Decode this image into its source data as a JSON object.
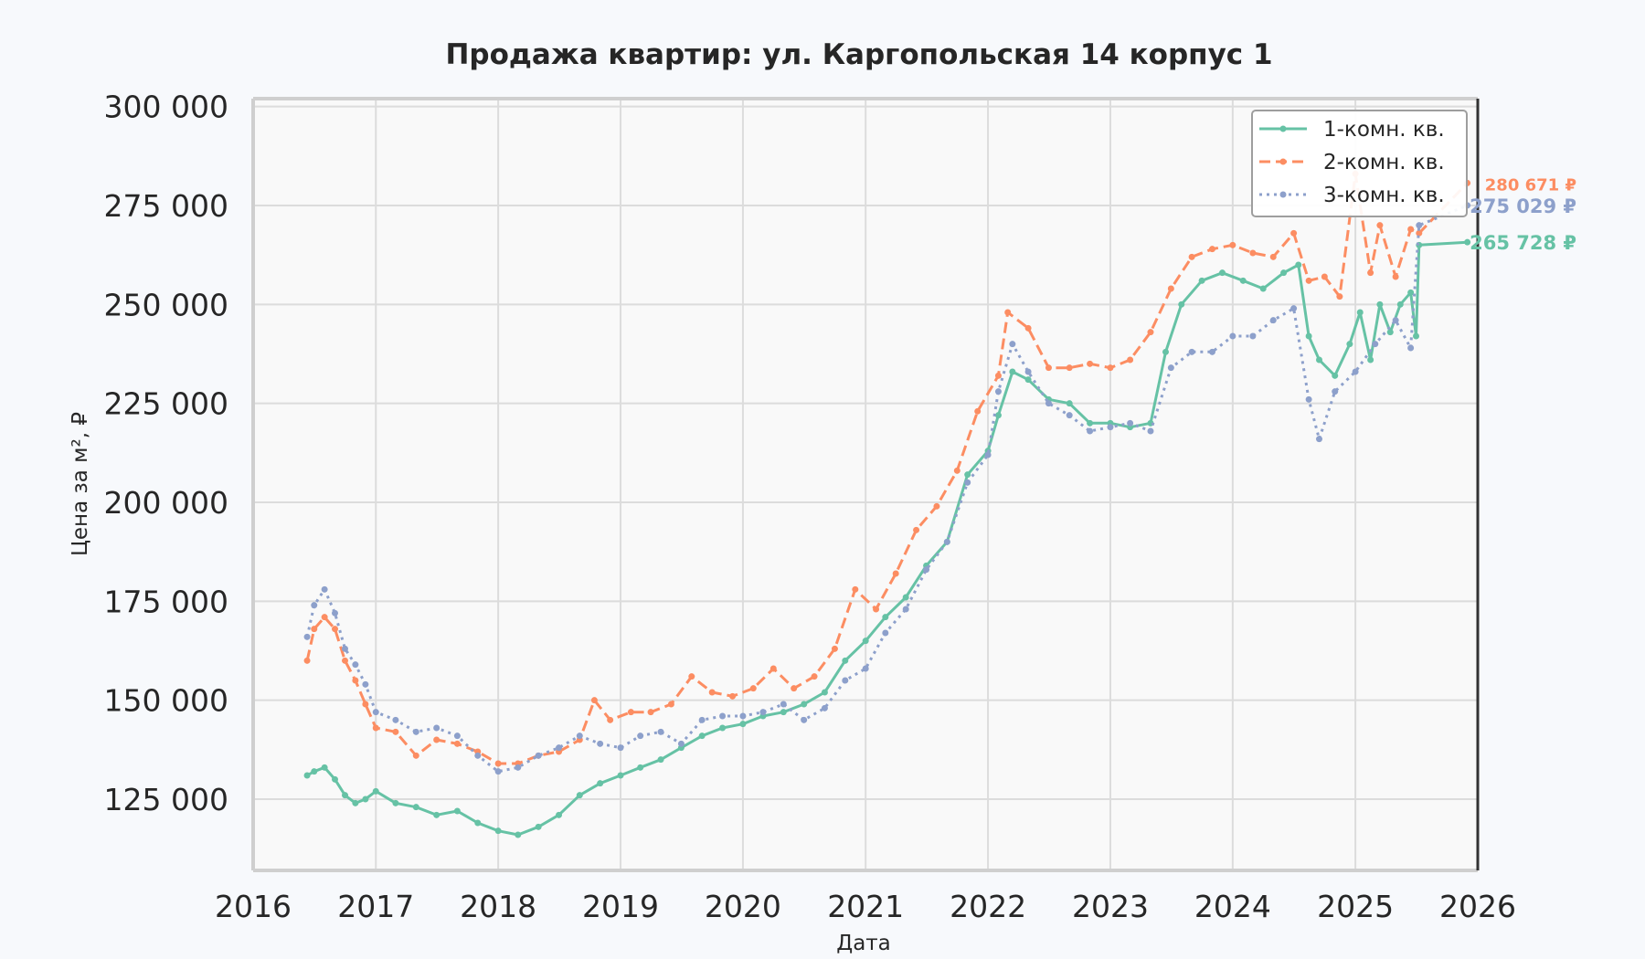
{
  "chart_data": {
    "type": "line",
    "title": "Продажа квартир: ул. Каргопольская 14 корпус 1",
    "xlabel": "Дата",
    "ylabel": "Цена за м², ₽",
    "xlim": [
      "2016-01-01",
      "2026-01-01"
    ],
    "ylim": [
      107000,
      302000
    ],
    "x_ticks": [
      "2016",
      "2017",
      "2018",
      "2019",
      "2020",
      "2021",
      "2022",
      "2023",
      "2024",
      "2025",
      "2026"
    ],
    "y_ticks": [
      "125 000",
      "150 000",
      "175 000",
      "200 000",
      "225 000",
      "250 000",
      "275 000",
      "300 000"
    ],
    "y_tick_values": [
      125000,
      150000,
      175000,
      200000,
      225000,
      250000,
      275000,
      300000
    ],
    "grid": true,
    "legend_position": "top-right",
    "series": [
      {
        "name": "1-комн. кв.",
        "color": "#66c2a5",
        "style": "solid",
        "end_label": "265 728 ₽",
        "end_value": 265728,
        "points": [
          [
            "2016-06-10",
            131000
          ],
          [
            "2016-07-01",
            132000
          ],
          [
            "2016-08-01",
            133000
          ],
          [
            "2016-09-01",
            130000
          ],
          [
            "2016-10-01",
            126000
          ],
          [
            "2016-11-01",
            124000
          ],
          [
            "2016-12-01",
            125000
          ],
          [
            "2017-01-01",
            127000
          ],
          [
            "2017-03-01",
            124000
          ],
          [
            "2017-05-01",
            123000
          ],
          [
            "2017-07-01",
            121000
          ],
          [
            "2017-09-01",
            122000
          ],
          [
            "2017-11-01",
            119000
          ],
          [
            "2018-01-01",
            117000
          ],
          [
            "2018-03-01",
            116000
          ],
          [
            "2018-05-01",
            118000
          ],
          [
            "2018-07-01",
            121000
          ],
          [
            "2018-09-01",
            126000
          ],
          [
            "2018-11-01",
            129000
          ],
          [
            "2019-01-01",
            131000
          ],
          [
            "2019-03-01",
            133000
          ],
          [
            "2019-05-01",
            135000
          ],
          [
            "2019-07-01",
            138000
          ],
          [
            "2019-09-01",
            141000
          ],
          [
            "2019-11-01",
            143000
          ],
          [
            "2020-01-01",
            144000
          ],
          [
            "2020-03-01",
            146000
          ],
          [
            "2020-05-01",
            147000
          ],
          [
            "2020-07-01",
            149000
          ],
          [
            "2020-09-01",
            152000
          ],
          [
            "2020-11-01",
            160000
          ],
          [
            "2021-01-01",
            165000
          ],
          [
            "2021-03-01",
            171000
          ],
          [
            "2021-05-01",
            176000
          ],
          [
            "2021-07-01",
            184000
          ],
          [
            "2021-09-01",
            190000
          ],
          [
            "2021-11-01",
            207000
          ],
          [
            "2022-01-01",
            213000
          ],
          [
            "2022-02-01",
            222000
          ],
          [
            "2022-03-15",
            233000
          ],
          [
            "2022-05-01",
            231000
          ],
          [
            "2022-07-01",
            226000
          ],
          [
            "2022-09-01",
            225000
          ],
          [
            "2022-11-01",
            220000
          ],
          [
            "2023-01-01",
            220000
          ],
          [
            "2023-03-01",
            219000
          ],
          [
            "2023-05-01",
            220000
          ],
          [
            "2023-06-15",
            238000
          ],
          [
            "2023-08-01",
            250000
          ],
          [
            "2023-10-01",
            256000
          ],
          [
            "2023-12-01",
            258000
          ],
          [
            "2024-02-01",
            256000
          ],
          [
            "2024-04-01",
            254000
          ],
          [
            "2024-06-01",
            258000
          ],
          [
            "2024-07-15",
            260000
          ],
          [
            "2024-08-15",
            242000
          ],
          [
            "2024-09-15",
            236000
          ],
          [
            "2024-11-01",
            232000
          ],
          [
            "2024-12-15",
            240000
          ],
          [
            "2025-01-15",
            248000
          ],
          [
            "2025-02-15",
            236000
          ],
          [
            "2025-03-15",
            250000
          ],
          [
            "2025-04-15",
            243000
          ],
          [
            "2025-05-15",
            250000
          ],
          [
            "2025-06-15",
            253000
          ],
          [
            "2025-07-01",
            242000
          ],
          [
            "2025-07-10",
            265000
          ],
          [
            "2025-12-01",
            265728
          ]
        ]
      },
      {
        "name": "2-комн. кв.",
        "color": "#fc8d62",
        "style": "dashed",
        "end_label": "280 671 ₽",
        "end_value": 280671,
        "points": [
          [
            "2016-06-10",
            160000
          ],
          [
            "2016-07-01",
            168000
          ],
          [
            "2016-08-01",
            171000
          ],
          [
            "2016-09-01",
            168000
          ],
          [
            "2016-10-01",
            160000
          ],
          [
            "2016-11-01",
            155000
          ],
          [
            "2016-12-01",
            149000
          ],
          [
            "2017-01-01",
            143000
          ],
          [
            "2017-03-01",
            142000
          ],
          [
            "2017-05-01",
            136000
          ],
          [
            "2017-07-01",
            140000
          ],
          [
            "2017-09-01",
            139000
          ],
          [
            "2017-11-01",
            137000
          ],
          [
            "2018-01-01",
            134000
          ],
          [
            "2018-03-01",
            134000
          ],
          [
            "2018-05-01",
            136000
          ],
          [
            "2018-07-01",
            137000
          ],
          [
            "2018-09-01",
            140000
          ],
          [
            "2018-10-15",
            150000
          ],
          [
            "2018-12-01",
            145000
          ],
          [
            "2019-02-01",
            147000
          ],
          [
            "2019-04-01",
            147000
          ],
          [
            "2019-06-01",
            149000
          ],
          [
            "2019-08-01",
            156000
          ],
          [
            "2019-10-01",
            152000
          ],
          [
            "2019-12-01",
            151000
          ],
          [
            "2020-02-01",
            153000
          ],
          [
            "2020-04-01",
            158000
          ],
          [
            "2020-06-01",
            153000
          ],
          [
            "2020-08-01",
            156000
          ],
          [
            "2020-10-01",
            163000
          ],
          [
            "2020-12-01",
            178000
          ],
          [
            "2021-02-01",
            173000
          ],
          [
            "2021-04-01",
            182000
          ],
          [
            "2021-06-01",
            193000
          ],
          [
            "2021-08-01",
            199000
          ],
          [
            "2021-10-01",
            208000
          ],
          [
            "2021-12-01",
            223000
          ],
          [
            "2022-02-01",
            232000
          ],
          [
            "2022-03-01",
            248000
          ],
          [
            "2022-05-01",
            244000
          ],
          [
            "2022-07-01",
            234000
          ],
          [
            "2022-09-01",
            234000
          ],
          [
            "2022-11-01",
            235000
          ],
          [
            "2023-01-01",
            234000
          ],
          [
            "2023-03-01",
            236000
          ],
          [
            "2023-05-01",
            243000
          ],
          [
            "2023-07-01",
            254000
          ],
          [
            "2023-09-01",
            262000
          ],
          [
            "2023-11-01",
            264000
          ],
          [
            "2024-01-01",
            265000
          ],
          [
            "2024-03-01",
            263000
          ],
          [
            "2024-05-01",
            262000
          ],
          [
            "2024-07-01",
            268000
          ],
          [
            "2024-08-15",
            256000
          ],
          [
            "2024-10-01",
            257000
          ],
          [
            "2024-11-15",
            252000
          ],
          [
            "2025-01-01",
            283000
          ],
          [
            "2025-02-15",
            258000
          ],
          [
            "2025-03-15",
            270000
          ],
          [
            "2025-05-01",
            257000
          ],
          [
            "2025-06-15",
            269000
          ],
          [
            "2025-07-10",
            268000
          ],
          [
            "2025-12-01",
            280671
          ]
        ]
      },
      {
        "name": "3-комн. кв.",
        "color": "#8da0cb",
        "style": "dotted",
        "end_label": "275 029 ₽",
        "end_value": 275029,
        "points": [
          [
            "2016-06-10",
            166000
          ],
          [
            "2016-07-01",
            174000
          ],
          [
            "2016-08-01",
            178000
          ],
          [
            "2016-09-01",
            172000
          ],
          [
            "2016-10-01",
            163000
          ],
          [
            "2016-11-01",
            159000
          ],
          [
            "2016-12-01",
            154000
          ],
          [
            "2017-01-01",
            147000
          ],
          [
            "2017-03-01",
            145000
          ],
          [
            "2017-05-01",
            142000
          ],
          [
            "2017-07-01",
            143000
          ],
          [
            "2017-09-01",
            141000
          ],
          [
            "2017-11-01",
            136000
          ],
          [
            "2018-01-01",
            132000
          ],
          [
            "2018-03-01",
            133000
          ],
          [
            "2018-05-01",
            136000
          ],
          [
            "2018-07-01",
            138000
          ],
          [
            "2018-09-01",
            141000
          ],
          [
            "2018-11-01",
            139000
          ],
          [
            "2019-01-01",
            138000
          ],
          [
            "2019-03-01",
            141000
          ],
          [
            "2019-05-01",
            142000
          ],
          [
            "2019-07-01",
            139000
          ],
          [
            "2019-09-01",
            145000
          ],
          [
            "2019-11-01",
            146000
          ],
          [
            "2020-01-01",
            146000
          ],
          [
            "2020-03-01",
            147000
          ],
          [
            "2020-05-01",
            149000
          ],
          [
            "2020-07-01",
            145000
          ],
          [
            "2020-09-01",
            148000
          ],
          [
            "2020-11-01",
            155000
          ],
          [
            "2021-01-01",
            158000
          ],
          [
            "2021-03-01",
            167000
          ],
          [
            "2021-05-01",
            173000
          ],
          [
            "2021-07-01",
            183000
          ],
          [
            "2021-09-01",
            190000
          ],
          [
            "2021-11-01",
            205000
          ],
          [
            "2022-01-01",
            212000
          ],
          [
            "2022-02-01",
            228000
          ],
          [
            "2022-03-15",
            240000
          ],
          [
            "2022-05-01",
            233000
          ],
          [
            "2022-07-01",
            225000
          ],
          [
            "2022-09-01",
            222000
          ],
          [
            "2022-11-01",
            218000
          ],
          [
            "2023-01-01",
            219000
          ],
          [
            "2023-03-01",
            220000
          ],
          [
            "2023-05-01",
            218000
          ],
          [
            "2023-07-01",
            234000
          ],
          [
            "2023-09-01",
            238000
          ],
          [
            "2023-11-01",
            238000
          ],
          [
            "2024-01-01",
            242000
          ],
          [
            "2024-03-01",
            242000
          ],
          [
            "2024-05-01",
            246000
          ],
          [
            "2024-07-01",
            249000
          ],
          [
            "2024-08-15",
            226000
          ],
          [
            "2024-09-15",
            216000
          ],
          [
            "2024-11-01",
            228000
          ],
          [
            "2025-01-01",
            233000
          ],
          [
            "2025-03-01",
            240000
          ],
          [
            "2025-05-01",
            246000
          ],
          [
            "2025-06-15",
            239000
          ],
          [
            "2025-07-10",
            270000
          ],
          [
            "2025-12-01",
            275029
          ]
        ]
      }
    ]
  }
}
